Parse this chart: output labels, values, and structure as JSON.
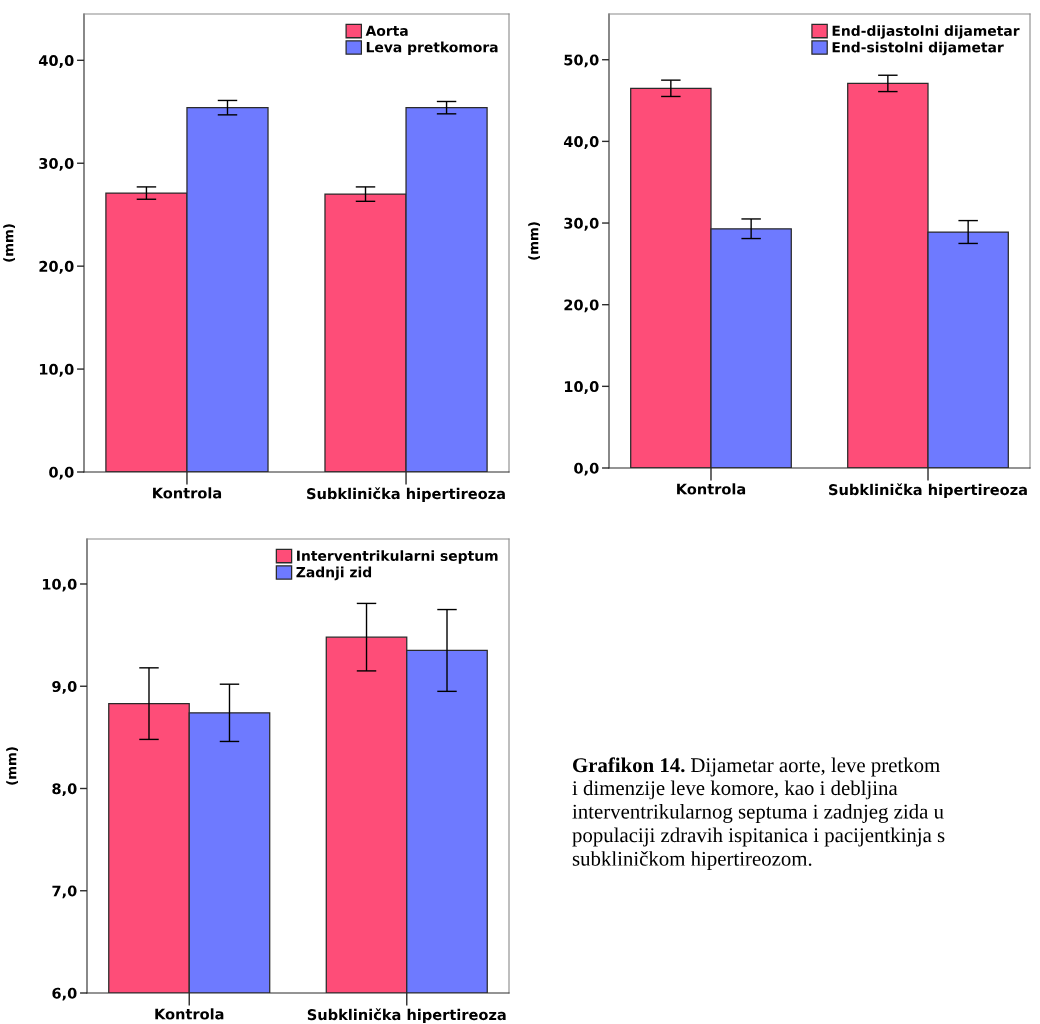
{
  "chart_data": [
    {
      "type": "bar",
      "categories": [
        "Kontrola",
        "Subklinička hipertireoza"
      ],
      "series": [
        {
          "name": "Aorta",
          "color": "#fe4d78",
          "values": [
            27.1,
            27.0
          ],
          "errors": [
            0.6,
            0.7
          ]
        },
        {
          "name": "Leva pretkomora",
          "color": "#6e7aff",
          "values": [
            35.4,
            35.4
          ],
          "errors": [
            0.7,
            0.6
          ]
        }
      ],
      "ylabel": "(mm)",
      "ylim": [
        0,
        44.5
      ],
      "yticks": [
        {
          "value": 0,
          "label": "0,0"
        },
        {
          "value": 10,
          "label": "10,0"
        },
        {
          "value": 20,
          "label": "20,0"
        },
        {
          "value": 30,
          "label": "30,0"
        },
        {
          "value": 40,
          "label": "40,0"
        }
      ],
      "legend": "top right"
    },
    {
      "type": "bar",
      "categories": [
        "Kontrola",
        "Subklinička hipertireoza"
      ],
      "series": [
        {
          "name": "End-dijastolni dijametar",
          "color": "#fe4d78",
          "values": [
            46.5,
            47.1
          ],
          "errors": [
            1.0,
            1.0
          ]
        },
        {
          "name": "End-sistolni dijametar",
          "color": "#6e7aff",
          "values": [
            29.3,
            28.9
          ],
          "errors": [
            1.2,
            1.4
          ]
        }
      ],
      "ylabel": "(mm)",
      "ylim": [
        0,
        55.6
      ],
      "yticks": [
        {
          "value": 0,
          "label": "0,0"
        },
        {
          "value": 10,
          "label": "10,0"
        },
        {
          "value": 20,
          "label": "20,0"
        },
        {
          "value": 30,
          "label": "30,0"
        },
        {
          "value": 40,
          "label": "40,0"
        },
        {
          "value": 50,
          "label": "50,0"
        }
      ],
      "legend": "top right"
    },
    {
      "type": "bar",
      "categories": [
        "Kontrola",
        "Subklinička hipertireoza"
      ],
      "series": [
        {
          "name": "Interventrikularni septum",
          "color": "#fe4d78",
          "values": [
            8.83,
            9.48
          ],
          "errors": [
            0.35,
            0.33
          ]
        },
        {
          "name": "Zadnji zid",
          "color": "#6e7aff",
          "values": [
            8.74,
            9.35
          ],
          "errors": [
            0.28,
            0.4
          ]
        }
      ],
      "ylabel": "(mm)",
      "ylim": [
        6,
        10.44
      ],
      "yticks": [
        {
          "value": 6,
          "label": "6,0"
        },
        {
          "value": 7,
          "label": "7,0"
        },
        {
          "value": 8,
          "label": "8,0"
        },
        {
          "value": 9,
          "label": "9,0"
        },
        {
          "value": 10,
          "label": "10,0"
        }
      ],
      "legend": "top right"
    },
    {
      "type": "other",
      "title": "Grafikon 14.",
      "annotations": [
        "Dijametar aorte, leve pretkom",
        "i dimenzije leve komore, kao i debljina\ninterventrikularnog septuma i zadnjeg zida u\npopulaciji zdravih ispitanica i pacijentkinja s\nsubkliničkom hipertireozom."
      ]
    }
  ]
}
